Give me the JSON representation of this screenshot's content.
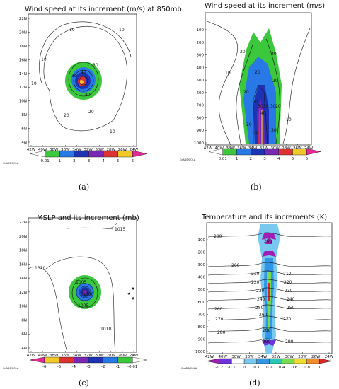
{
  "chart_data": [
    {
      "id": "a",
      "type": "heatmap",
      "title": "Wind speed at its increment (m/s) at 850mb",
      "caption": "(a)",
      "x_ticks": [
        "42W",
        "40W",
        "38W",
        "36W",
        "34W",
        "32W",
        "30W",
        "28W",
        "26W",
        "24W"
      ],
      "y_ticks": [
        "4N",
        "6N",
        "8N",
        "10N",
        "12N",
        "14N",
        "16N",
        "18N",
        "20N",
        "22N"
      ],
      "contour_labels": [
        "10",
        "10",
        "10",
        "20",
        "20",
        "30",
        "30",
        "40",
        "10",
        "20",
        "10"
      ],
      "colorbar": {
        "levels": [
          "0.01",
          "1",
          "2",
          "3",
          "4",
          "5",
          "6"
        ],
        "colors": [
          "#ffffff",
          "#3cc83c",
          "#2878e6",
          "#1e32b4",
          "#7828b4",
          "#dc3232",
          "#f0c828",
          "#e62896"
        ]
      },
      "logo": "GrADS/COLA"
    },
    {
      "id": "b",
      "type": "heatmap",
      "title": "Wind speed at its increment (m/s)",
      "caption": "(b)",
      "x_ticks": [
        "42W",
        "40W",
        "38W",
        "36W",
        "34W",
        "32W",
        "30W",
        "28W",
        "26W",
        "24W"
      ],
      "y_ticks": [
        "100",
        "200",
        "300",
        "400",
        "500",
        "600",
        "700",
        "800",
        "900",
        "1000"
      ],
      "contour_labels": [
        "20",
        "10",
        "20",
        "20",
        "20",
        "20",
        "30",
        "20",
        "20",
        "30",
        "30",
        "40",
        "20",
        "10",
        "20",
        "30"
      ],
      "colorbar": {
        "levels": [
          "0.01",
          "1",
          "2",
          "3",
          "4",
          "5",
          "6"
        ],
        "colors": [
          "#ffffff",
          "#3cc83c",
          "#2878e6",
          "#1e32b4",
          "#7828b4",
          "#dc3232",
          "#f0c828",
          "#e62896"
        ]
      },
      "logo": "GrADS/COLA"
    },
    {
      "id": "c",
      "type": "heatmap",
      "title": "MSLP and its increment (mb)",
      "caption": "(c)",
      "x_ticks": [
        "42W",
        "40W",
        "38W",
        "36W",
        "34W",
        "32W",
        "30W",
        "28W",
        "26W",
        "24W"
      ],
      "y_ticks": [
        "4N",
        "6N",
        "8N",
        "10N",
        "12N",
        "14N",
        "16N",
        "18N",
        "20N",
        "22N"
      ],
      "contour_labels": [
        "1015",
        "1010",
        "1005",
        "1000",
        "1005",
        "1010"
      ],
      "colorbar": {
        "levels": [
          "-6",
          "-5",
          "-4",
          "-3",
          "-2",
          "-1",
          "-0.01"
        ],
        "colors": [
          "#e62896",
          "#f0c828",
          "#dc3232",
          "#7828b4",
          "#1e32b4",
          "#2878e6",
          "#3cc83c",
          "#ffffff"
        ]
      },
      "logo": "GrADS/COLA"
    },
    {
      "id": "d",
      "type": "heatmap",
      "title": "Temperature and its increments (K)",
      "caption": "(d)",
      "x_ticks": [
        "42W",
        "40W",
        "38W",
        "36W",
        "34W",
        "32W",
        "30W",
        "28W",
        "26W",
        "24W"
      ],
      "y_ticks": [
        "100",
        "200",
        "300",
        "400",
        "500",
        "600",
        "700",
        "800",
        "900",
        "1000"
      ],
      "contour_labels": [
        "200",
        "200",
        "200",
        "210",
        "210",
        "220",
        "220",
        "230",
        "230",
        "240",
        "240",
        "250",
        "250",
        "260",
        "260",
        "270",
        "270",
        "280",
        "280",
        "290",
        "290"
      ],
      "colorbar": {
        "levels": [
          "-0.2",
          "-0.1",
          "0",
          "0.1",
          "0.2",
          "0.4",
          "0.6",
          "0.8",
          "1"
        ],
        "colors": [
          "#a01eb4",
          "#6e32dc",
          "#ffffff",
          "#78c8f0",
          "#3296e6",
          "#28c8b4",
          "#78dc50",
          "#f0dc32",
          "#f08c28",
          "#dc2828"
        ]
      },
      "logo": "GrADS/COLA"
    }
  ]
}
